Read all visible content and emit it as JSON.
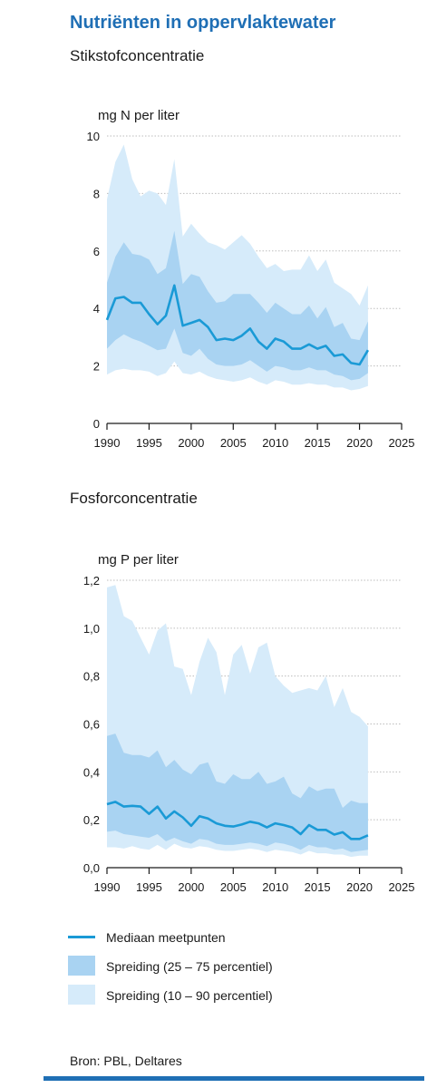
{
  "title": "Nutriënten in oppervlaktewater",
  "colors": {
    "title": "#1f6fb5",
    "median": "#1a9ad6",
    "band_25_75": "#a9d3f2",
    "band_10_90": "#d6ebfa",
    "rule": "#1f6fb5"
  },
  "legend": {
    "median": "Mediaan meetpunten",
    "band_25_75": "Spreiding (25 – 75 percentiel)",
    "band_10_90": "Spreiding (10 – 90 percentiel)"
  },
  "source": "Bron: PBL, Deltares",
  "chart_data": [
    {
      "type": "area",
      "title": "Stikstofconcentratie",
      "ylabel": "mg N per liter",
      "xlim": [
        1990,
        2025
      ],
      "ylim": [
        0,
        10
      ],
      "xticks": [
        "1990",
        "1995",
        "2000",
        "2005",
        "2010",
        "2015",
        "2020",
        "2025"
      ],
      "yticks": [
        "0",
        "2",
        "4",
        "6",
        "8",
        "10"
      ],
      "grid": true,
      "x": [
        1990,
        1991,
        1992,
        1993,
        1994,
        1995,
        1996,
        1997,
        1998,
        1999,
        2000,
        2001,
        2002,
        2003,
        2004,
        2005,
        2006,
        2007,
        2008,
        2009,
        2010,
        2011,
        2012,
        2013,
        2014,
        2015,
        2016,
        2017,
        2018,
        2019,
        2020,
        2021
      ],
      "series": [
        {
          "name": "Mediaan meetpunten",
          "role": "median",
          "values": [
            3.6,
            4.35,
            4.4,
            4.2,
            4.2,
            3.8,
            3.45,
            3.75,
            4.8,
            3.4,
            3.5,
            3.6,
            3.35,
            2.9,
            2.95,
            2.9,
            3.05,
            3.3,
            2.85,
            2.6,
            2.95,
            2.85,
            2.6,
            2.6,
            2.75,
            2.6,
            2.7,
            2.35,
            2.4,
            2.1,
            2.05,
            2.55
          ]
        },
        {
          "name": "Spreiding (25 – 75 percentiel)",
          "role": "band_25_75",
          "low": [
            2.6,
            2.9,
            3.1,
            2.95,
            2.85,
            2.7,
            2.55,
            2.6,
            3.3,
            2.45,
            2.35,
            2.6,
            2.25,
            2.05,
            2.0,
            2.0,
            2.05,
            2.2,
            2.0,
            1.8,
            2.0,
            1.95,
            1.85,
            1.85,
            1.95,
            1.85,
            1.85,
            1.7,
            1.65,
            1.5,
            1.55,
            1.75
          ],
          "high": [
            4.9,
            5.8,
            6.3,
            5.9,
            5.85,
            5.7,
            5.2,
            5.4,
            6.7,
            4.85,
            5.2,
            5.1,
            4.6,
            4.2,
            4.25,
            4.5,
            4.5,
            4.5,
            4.2,
            3.85,
            4.2,
            4.0,
            3.8,
            3.8,
            4.1,
            3.65,
            4.05,
            3.35,
            3.5,
            2.95,
            2.9,
            3.55
          ]
        },
        {
          "name": "Spreiding (10 – 90 percentiel)",
          "role": "band_10_90",
          "low": [
            1.7,
            1.85,
            1.9,
            1.85,
            1.85,
            1.8,
            1.65,
            1.75,
            2.15,
            1.75,
            1.7,
            1.8,
            1.65,
            1.55,
            1.5,
            1.45,
            1.5,
            1.6,
            1.45,
            1.35,
            1.5,
            1.45,
            1.35,
            1.35,
            1.4,
            1.35,
            1.35,
            1.25,
            1.25,
            1.15,
            1.2,
            1.3
          ],
          "high": [
            7.8,
            9.1,
            9.7,
            8.5,
            7.9,
            8.1,
            8.0,
            7.6,
            9.2,
            6.5,
            6.95,
            6.6,
            6.3,
            6.2,
            6.05,
            6.3,
            6.55,
            6.25,
            5.8,
            5.4,
            5.55,
            5.3,
            5.35,
            5.35,
            5.85,
            5.3,
            5.7,
            4.9,
            4.7,
            4.5,
            4.1,
            4.8
          ]
        }
      ]
    },
    {
      "type": "area",
      "title": "Fosforconcentratie",
      "ylabel": "mg P per liter",
      "xlim": [
        1990,
        2025
      ],
      "ylim": [
        0,
        1.2
      ],
      "xticks": [
        "1990",
        "1995",
        "2000",
        "2005",
        "2010",
        "2015",
        "2020",
        "2025"
      ],
      "yticks": [
        "0,0",
        "0,2",
        "0,4",
        "0,6",
        "0,8",
        "1,0",
        "1,2"
      ],
      "grid": true,
      "x": [
        1990,
        1991,
        1992,
        1993,
        1994,
        1995,
        1996,
        1997,
        1998,
        1999,
        2000,
        2001,
        2002,
        2003,
        2004,
        2005,
        2006,
        2007,
        2008,
        2009,
        2010,
        2011,
        2012,
        2013,
        2014,
        2015,
        2016,
        2017,
        2018,
        2019,
        2020,
        2021
      ],
      "series": [
        {
          "name": "Mediaan meetpunten",
          "role": "median",
          "values": [
            0.265,
            0.275,
            0.255,
            0.258,
            0.255,
            0.225,
            0.255,
            0.205,
            0.235,
            0.21,
            0.175,
            0.215,
            0.205,
            0.185,
            0.175,
            0.172,
            0.18,
            0.192,
            0.185,
            0.168,
            0.185,
            0.178,
            0.168,
            0.14,
            0.178,
            0.158,
            0.158,
            0.138,
            0.148,
            0.12,
            0.12,
            0.135
          ]
        },
        {
          "name": "Spreiding (25 – 75 percentiel)",
          "role": "band_25_75",
          "low": [
            0.15,
            0.155,
            0.14,
            0.135,
            0.13,
            0.125,
            0.14,
            0.11,
            0.125,
            0.11,
            0.1,
            0.12,
            0.115,
            0.1,
            0.095,
            0.095,
            0.1,
            0.105,
            0.1,
            0.09,
            0.105,
            0.1,
            0.09,
            0.075,
            0.095,
            0.085,
            0.085,
            0.075,
            0.08,
            0.065,
            0.07,
            0.075
          ],
          "high": [
            0.55,
            0.56,
            0.48,
            0.47,
            0.47,
            0.46,
            0.49,
            0.42,
            0.45,
            0.41,
            0.39,
            0.43,
            0.44,
            0.36,
            0.35,
            0.39,
            0.37,
            0.37,
            0.4,
            0.35,
            0.36,
            0.38,
            0.31,
            0.29,
            0.34,
            0.32,
            0.33,
            0.33,
            0.25,
            0.28,
            0.27,
            0.27
          ]
        },
        {
          "name": "Spreiding (10 – 90 percentiel)",
          "role": "band_10_90",
          "low": [
            0.085,
            0.085,
            0.08,
            0.09,
            0.08,
            0.075,
            0.095,
            0.075,
            0.1,
            0.085,
            0.08,
            0.09,
            0.085,
            0.075,
            0.07,
            0.07,
            0.075,
            0.08,
            0.075,
            0.065,
            0.075,
            0.07,
            0.065,
            0.055,
            0.07,
            0.06,
            0.06,
            0.055,
            0.055,
            0.045,
            0.05,
            0.05
          ],
          "high": [
            1.17,
            1.18,
            1.05,
            1.03,
            0.96,
            0.89,
            0.99,
            1.02,
            0.84,
            0.83,
            0.72,
            0.86,
            0.96,
            0.9,
            0.72,
            0.89,
            0.93,
            0.81,
            0.92,
            0.94,
            0.8,
            0.76,
            0.73,
            0.74,
            0.75,
            0.74,
            0.8,
            0.67,
            0.75,
            0.65,
            0.63,
            0.59
          ]
        }
      ]
    }
  ]
}
